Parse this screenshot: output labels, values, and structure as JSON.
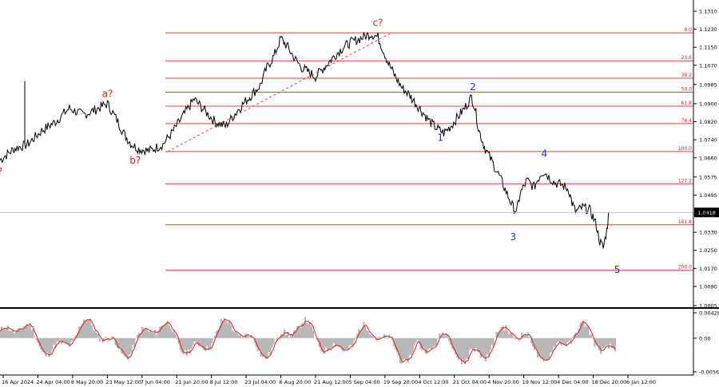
{
  "chart_data": {
    "type": "line",
    "title": "",
    "price_axis": {
      "ticks": [
        "1.1310",
        "1.1230",
        "1.1150",
        "1.1070",
        "1.0985",
        "1.0900",
        "1.0820",
        "1.0740",
        "1.0660",
        "1.0575",
        "1.0495",
        "1.0410",
        "1.0330",
        "1.0250",
        "1.0170",
        "1.0090",
        "1.0005"
      ],
      "range": [
        1.0005,
        1.131
      ]
    },
    "current_price": "1.0418",
    "x_ticks": [
      "16 Apr 2024",
      "24 Apr 04:00",
      "8 May 20:00",
      "23 May 12:00",
      "7 Jun 04:00",
      "21 Jun 20:00",
      "8 Jul 12:00",
      "23 Jul 04:00",
      "6 Aug 20:00",
      "21 Aug 12:00",
      "5 Sep 04:00",
      "19 Sep 20:00",
      "4 Oct 12:00",
      "21 Oct 04:00",
      "4 Nov 20:00",
      "19 Nov 12:00",
      "4 Dec 04:00",
      "18 Dec 20:00",
      "6 Jan 12:00"
    ],
    "fib_levels": [
      {
        "label": "0.0",
        "price": 1.1214
      },
      {
        "label": "23.6",
        "price": 1.109
      },
      {
        "label": "38.2",
        "price": 1.1013
      },
      {
        "label": "50.0",
        "price": 1.0951
      },
      {
        "label": "61.8",
        "price": 1.0889
      },
      {
        "label": "76.4",
        "price": 1.0812
      },
      {
        "label": "100.0",
        "price": 1.0688
      },
      {
        "label": "127.2",
        "price": 1.0545
      },
      {
        "label": "161.8",
        "price": 1.0363
      },
      {
        "label": "200.0",
        "price": 1.0162
      }
    ],
    "wave_labels": [
      {
        "text": "?",
        "t": 0,
        "price": 1.0585,
        "color": "#e02020"
      },
      {
        "text": "a?",
        "t": 0.155,
        "price": 1.093,
        "color": "#e02020"
      },
      {
        "text": "b?",
        "t": 0.195,
        "price": 1.0635,
        "color": "#e02020"
      },
      {
        "text": "c?",
        "t": 0.545,
        "price": 1.1245,
        "color": "#e02020"
      },
      {
        "text": "1",
        "t": 0.635,
        "price": 1.0735,
        "color": "#1f2fd0"
      },
      {
        "text": "2",
        "t": 0.682,
        "price": 1.096,
        "color": "#1f2fd0"
      },
      {
        "text": "3",
        "t": 0.74,
        "price": 1.0295,
        "color": "#1f2fd0"
      },
      {
        "text": "4",
        "t": 0.785,
        "price": 1.0665,
        "color": "#1f2fd0"
      },
      {
        "text": "5",
        "t": 0.89,
        "price": 1.015,
        "color": "#1f2fd0"
      }
    ],
    "price_series": {
      "t": [
        0,
        0.02,
        0.04,
        0.06,
        0.08,
        0.1,
        0.12,
        0.135,
        0.155,
        0.17,
        0.18,
        0.19,
        0.2,
        0.215,
        0.235,
        0.25,
        0.265,
        0.28,
        0.295,
        0.31,
        0.325,
        0.345,
        0.36,
        0.375,
        0.385,
        0.395,
        0.405,
        0.415,
        0.425,
        0.435,
        0.445,
        0.455,
        0.47,
        0.485,
        0.495,
        0.505,
        0.52,
        0.535,
        0.545,
        0.555,
        0.56,
        0.57,
        0.58,
        0.59,
        0.6,
        0.61,
        0.62,
        0.63,
        0.64,
        0.65,
        0.66,
        0.67,
        0.68,
        0.685,
        0.69,
        0.695,
        0.7,
        0.71,
        0.72,
        0.73,
        0.74,
        0.745,
        0.75,
        0.76,
        0.77,
        0.78,
        0.785,
        0.79,
        0.8,
        0.81,
        0.82,
        0.825,
        0.83,
        0.84,
        0.85,
        0.855,
        0.86,
        0.865,
        0.87,
        0.875,
        0.878
      ],
      "values": [
        1.065,
        1.07,
        1.072,
        1.078,
        1.082,
        1.088,
        1.085,
        1.087,
        1.09,
        1.082,
        1.076,
        1.072,
        1.07,
        1.069,
        1.072,
        1.078,
        1.085,
        1.092,
        1.087,
        1.082,
        1.08,
        1.088,
        1.093,
        1.098,
        1.106,
        1.111,
        1.119,
        1.115,
        1.11,
        1.106,
        1.104,
        1.102,
        1.107,
        1.112,
        1.115,
        1.117,
        1.119,
        1.121,
        1.1195,
        1.112,
        1.108,
        1.102,
        1.097,
        1.094,
        1.09,
        1.086,
        1.082,
        1.079,
        1.077,
        1.08,
        1.084,
        1.088,
        1.093,
        1.088,
        1.079,
        1.074,
        1.07,
        1.064,
        1.058,
        1.051,
        1.044,
        1.042,
        1.05,
        1.056,
        1.053,
        1.059,
        1.06,
        1.058,
        1.055,
        1.054,
        1.052,
        1.046,
        1.042,
        1.044,
        1.043,
        1.04,
        1.036,
        1.029,
        1.026,
        1.034,
        1.0418
      ]
    },
    "oscillator": {
      "ticks": [
        "0.00428",
        "0.00",
        "-0.00569"
      ],
      "range": [
        -0.00569,
        0.00428
      ],
      "histogram_color": "#b8b8b8",
      "signal_color": "#e02020"
    },
    "colors": {
      "fib_line": "#e04040",
      "price_line": "#000000",
      "diagonal": "#e04040"
    }
  }
}
